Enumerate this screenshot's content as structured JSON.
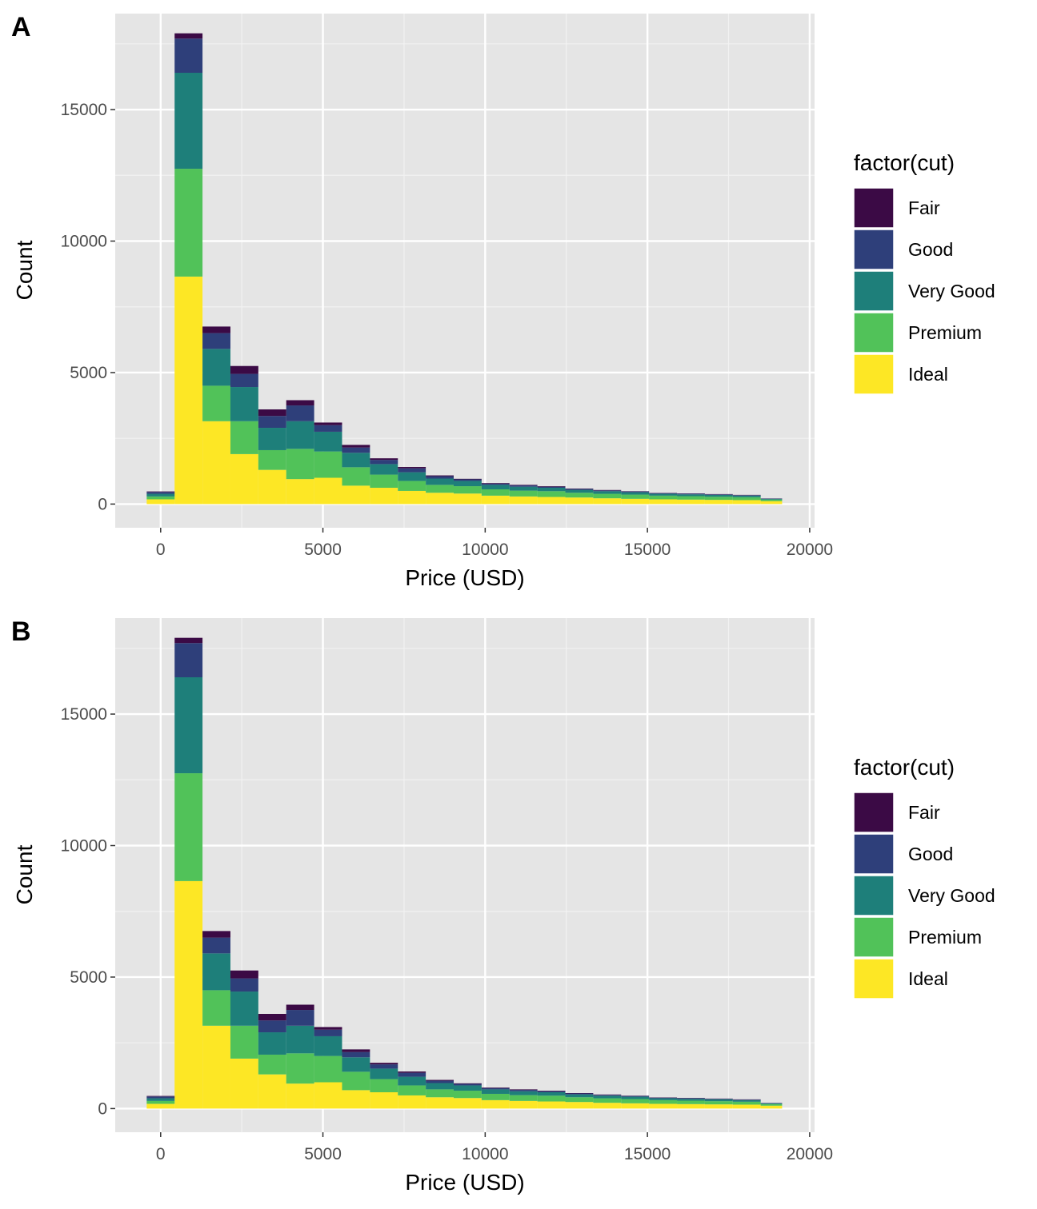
{
  "chart_data": [
    {
      "panel_tag": "A",
      "type": "bar",
      "stacked": true,
      "xlabel": "Price (USD)",
      "ylabel": "Count",
      "xlim": [
        -1400,
        20150
      ],
      "ylim": [
        -900,
        18650
      ],
      "x_ticks": [
        0,
        5000,
        10000,
        15000,
        20000
      ],
      "y_ticks": [
        0,
        5000,
        10000,
        15000
      ],
      "x_ticks_text": [
        "0",
        "5000",
        "10000",
        "15000",
        "20000"
      ],
      "y_ticks_text": [
        "0",
        "5000",
        "10000",
        "15000"
      ],
      "grid": true,
      "legend": {
        "title": "factor(cut)",
        "position": "right"
      },
      "bin_edges": [
        -430,
        430,
        1290,
        2150,
        3010,
        3870,
        4730,
        5590,
        6450,
        7310,
        8170,
        9030,
        9890,
        10750,
        11610,
        12470,
        13330,
        14190,
        15050,
        15910,
        16770,
        17630,
        18490,
        19150
      ],
      "series": [
        {
          "name": "Ideal",
          "color": "#FDE725",
          "values": [
            180,
            8650,
            3150,
            1900,
            1300,
            950,
            1000,
            700,
            620,
            500,
            430,
            400,
            320,
            290,
            270,
            250,
            220,
            200,
            180,
            170,
            160,
            150,
            110
          ]
        },
        {
          "name": "Premium",
          "color": "#51C259",
          "values": [
            110,
            4100,
            1350,
            1250,
            750,
            1150,
            1000,
            700,
            500,
            380,
            300,
            280,
            240,
            220,
            220,
            180,
            170,
            160,
            140,
            130,
            120,
            110,
            60
          ]
        },
        {
          "name": "Very Good",
          "color": "#1E7F7A",
          "values": [
            100,
            3650,
            1400,
            1300,
            850,
            1050,
            750,
            550,
            400,
            330,
            240,
            200,
            170,
            150,
            130,
            110,
            100,
            90,
            70,
            70,
            70,
            60,
            30
          ]
        },
        {
          "name": "Good",
          "color": "#2E3F7A",
          "values": [
            70,
            1300,
            600,
            500,
            450,
            600,
            250,
            200,
            160,
            150,
            90,
            60,
            50,
            50,
            40,
            35,
            30,
            30,
            25,
            25,
            20,
            20,
            10
          ]
        },
        {
          "name": "Fair",
          "color": "#3B0A45",
          "values": [
            20,
            200,
            250,
            300,
            250,
            200,
            100,
            100,
            60,
            50,
            30,
            20,
            20,
            20,
            20,
            15,
            15,
            10,
            10,
            10,
            10,
            10,
            5
          ]
        }
      ]
    },
    {
      "panel_tag": "B",
      "type": "bar",
      "stacked": true,
      "xlabel": "Price (USD)",
      "ylabel": "Count",
      "xlim": [
        -1400,
        20150
      ],
      "ylim": [
        -900,
        18650
      ],
      "x_ticks": [
        0,
        5000,
        10000,
        15000,
        20000
      ],
      "y_ticks": [
        0,
        5000,
        10000,
        15000
      ],
      "x_ticks_text": [
        "0",
        "5000",
        "10000",
        "15000",
        "20000"
      ],
      "y_ticks_text": [
        "0",
        "5000",
        "10000",
        "15000"
      ],
      "grid": true,
      "legend": {
        "title": "factor(cut)",
        "position": "right"
      },
      "bin_edges": [
        -430,
        430,
        1290,
        2150,
        3010,
        3870,
        4730,
        5590,
        6450,
        7310,
        8170,
        9030,
        9890,
        10750,
        11610,
        12470,
        13330,
        14190,
        15050,
        15910,
        16770,
        17630,
        18490,
        19150
      ],
      "series": [
        {
          "name": "Ideal",
          "color": "#FDE725",
          "values": [
            180,
            8650,
            3150,
            1900,
            1300,
            950,
            1000,
            700,
            620,
            500,
            430,
            400,
            320,
            290,
            270,
            250,
            220,
            200,
            180,
            170,
            160,
            150,
            110
          ]
        },
        {
          "name": "Premium",
          "color": "#51C259",
          "values": [
            110,
            4100,
            1350,
            1250,
            750,
            1150,
            1000,
            700,
            500,
            380,
            300,
            280,
            240,
            220,
            220,
            180,
            170,
            160,
            140,
            130,
            120,
            110,
            60
          ]
        },
        {
          "name": "Very Good",
          "color": "#1E7F7A",
          "values": [
            100,
            3650,
            1400,
            1300,
            850,
            1050,
            750,
            550,
            400,
            330,
            240,
            200,
            170,
            150,
            130,
            110,
            100,
            90,
            70,
            70,
            70,
            60,
            30
          ]
        },
        {
          "name": "Good",
          "color": "#2E3F7A",
          "values": [
            70,
            1300,
            600,
            500,
            450,
            600,
            250,
            200,
            160,
            150,
            90,
            60,
            50,
            50,
            40,
            35,
            30,
            30,
            25,
            25,
            20,
            20,
            10
          ]
        },
        {
          "name": "Fair",
          "color": "#3B0A45",
          "values": [
            20,
            200,
            250,
            300,
            250,
            200,
            100,
            100,
            60,
            50,
            30,
            20,
            20,
            20,
            20,
            15,
            15,
            10,
            10,
            10,
            10,
            10,
            5
          ]
        }
      ]
    }
  ]
}
